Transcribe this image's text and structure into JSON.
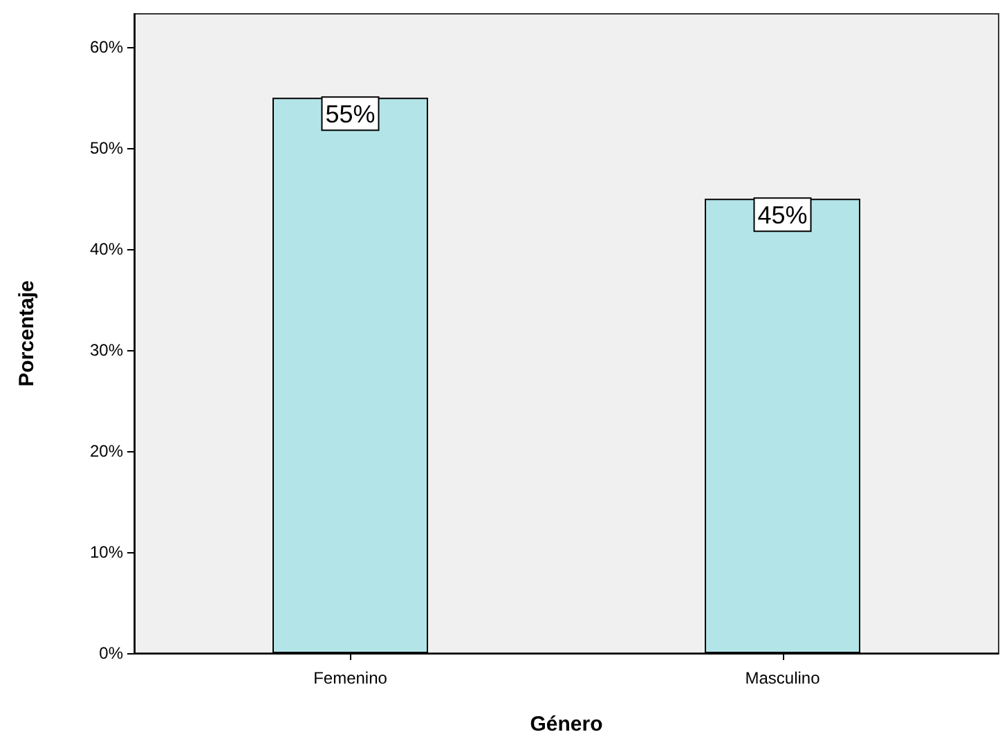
{
  "chart_data": {
    "type": "bar",
    "xlabel": "Género",
    "ylabel": "Porcentaje",
    "categories": [
      "Femenino",
      "Masculino"
    ],
    "values": [
      55,
      45
    ],
    "color": "#b3e5e8",
    "value_labels": [
      "55%",
      "45%"
    ],
    "ylim": [
      0,
      63.3
    ],
    "yticks": [
      {
        "value": 0,
        "label": "0%"
      },
      {
        "value": 10,
        "label": "10%"
      },
      {
        "value": 20,
        "label": "20%"
      },
      {
        "value": 30,
        "label": "30%"
      },
      {
        "value": 40,
        "label": "40%"
      },
      {
        "value": 50,
        "label": "50%"
      },
      {
        "value": 60,
        "label": "60%"
      }
    ],
    "grid": false
  }
}
